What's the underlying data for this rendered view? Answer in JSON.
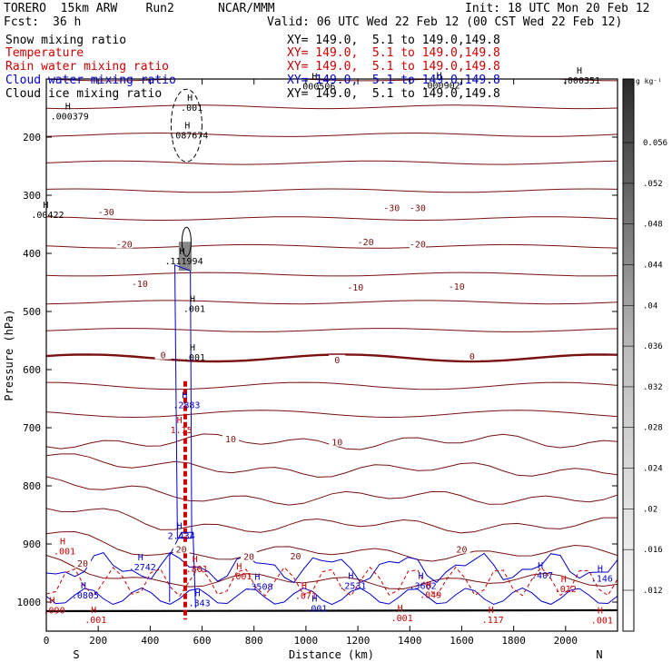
{
  "header": {
    "model": "TORERO  15km ARW    Run2",
    "org": "NCAR/MMM",
    "init": "Init: 18 UTC Mon 20 Feb 12",
    "fcst_label": "Fcst:",
    "fcst_value": "36 h",
    "valid": "Valid: 06 UTC Wed 22 Feb 12 (00 CST Wed 22 Feb 12)"
  },
  "legend": [
    {
      "name": "Snow mixing ratio",
      "coords": "",
      "color": "#000000"
    },
    {
      "name": "Temperature",
      "coords": "XY= 149.0,  5.1 to 149.0,149.8",
      "color": "#cc0000"
    },
    {
      "name": "Rain water mixing ratio",
      "coords": "XY= 149.0,  5.1 to 149.0,149.8",
      "color": "#cc0000"
    },
    {
      "name": "Cloud water mixing ratio",
      "coords": "XY= 149.0,  5.1 to 149.0,149.8",
      "color": "#0000cc"
    },
    {
      "name": "Cloud ice mixing ratio",
      "coords": "XY= 149.0,  5.1 to 149.0,149.8",
      "color": "#000000"
    }
  ],
  "snow_coords": "XY= 149.0,  5.1 to 149.0,149.8",
  "chart_data": {
    "type": "cross-section contour",
    "title": "Vertical cross-section",
    "xlabel": "Distance (km)",
    "ylabel": "Pressure (hPa)",
    "xlim": [
      0,
      2200
    ],
    "ylim": [
      1050,
      100
    ],
    "x_ticks": [
      0,
      200,
      400,
      600,
      800,
      1000,
      1200,
      1400,
      1600,
      1800,
      2000
    ],
    "y_ticks": [
      200,
      300,
      400,
      500,
      600,
      700,
      800,
      900,
      1000
    ],
    "x_end_labels": {
      "left": "S",
      "right": "N"
    },
    "colorbar": {
      "unit": "g kg⁻¹",
      "ticks": [
        "0.056",
        ".052",
        ".048",
        ".044",
        ".04",
        ".036",
        ".032",
        ".028",
        ".024",
        ".02",
        ".016",
        ".012"
      ]
    },
    "temperature_labels": [
      {
        "x": 230,
        "p": 330,
        "text": "-30"
      },
      {
        "x": 1330,
        "p": 323,
        "text": "-30"
      },
      {
        "x": 1430,
        "p": 323,
        "text": "-30"
      },
      {
        "x": 300,
        "p": 385,
        "text": "-20"
      },
      {
        "x": 1230,
        "p": 381,
        "text": "-20"
      },
      {
        "x": 1430,
        "p": 385,
        "text": "-20"
      },
      {
        "x": 360,
        "p": 453,
        "text": "-10"
      },
      {
        "x": 1190,
        "p": 459,
        "text": "-10"
      },
      {
        "x": 1580,
        "p": 458,
        "text": "-10"
      },
      {
        "x": 450,
        "p": 576,
        "text": "0"
      },
      {
        "x": 1120,
        "p": 584,
        "text": "0"
      },
      {
        "x": 1640,
        "p": 578,
        "text": "0"
      },
      {
        "x": 710,
        "p": 720,
        "text": "10"
      },
      {
        "x": 1120,
        "p": 726,
        "text": "10"
      },
      {
        "x": 520,
        "p": 910,
        "text": "20"
      },
      {
        "x": 780,
        "p": 923,
        "text": "20"
      },
      {
        "x": 960,
        "p": 922,
        "text": "20"
      },
      {
        "x": 1600,
        "p": 910,
        "text": "20"
      },
      {
        "x": 140,
        "p": 934,
        "text": "20"
      }
    ],
    "extrema_labels": [
      {
        "x": 90,
        "p": 165,
        "text": ".000379",
        "color": "#000"
      },
      {
        "x": 550,
        "p": 198,
        "text": ".087674",
        "color": "#000"
      },
      {
        "x": 560,
        "p": 150,
        "text": ".001",
        "color": "#000"
      },
      {
        "x": 530,
        "p": 414,
        "text": ".111994",
        "color": "#000"
      },
      {
        "x": 5,
        "p": 334,
        "text": ".00422",
        "color": "#000"
      },
      {
        "x": 1040,
        "p": 113,
        "text": ".000506",
        "color": "#000"
      },
      {
        "x": 1520,
        "p": 112,
        "text": ".000902",
        "color": "#000"
      },
      {
        "x": 2060,
        "p": 103,
        "text": ".000351",
        "color": "#000"
      },
      {
        "x": 570,
        "p": 496,
        "text": ".001",
        "color": "#000"
      },
      {
        "x": 570,
        "p": 580,
        "text": ".001",
        "color": "#000"
      },
      {
        "x": 540,
        "p": 662,
        "text": ".2883",
        "color": "#0000cc"
      },
      {
        "x": 520,
        "p": 705,
        "text": "1.15",
        "color": "#cc0000"
      },
      {
        "x": 520,
        "p": 887,
        "text": "2.434",
        "color": "#0000cc"
      },
      {
        "x": 370,
        "p": 941,
        "text": ".2742",
        "color": "#0000cc"
      },
      {
        "x": 150,
        "p": 989,
        "text": ".0805",
        "color": "#0000cc"
      },
      {
        "x": 750,
        "p": 956,
        "text": ".001",
        "color": "#cc0000"
      },
      {
        "x": 820,
        "p": 974,
        "text": ".3508",
        "color": "#0000cc"
      },
      {
        "x": 1180,
        "p": 973,
        "text": ".2531",
        "color": "#0000cc"
      },
      {
        "x": 1450,
        "p": 973,
        "text": ".3662",
        "color": "#0000cc"
      },
      {
        "x": 1480,
        "p": 988,
        "text": ".049",
        "color": "#cc0000"
      },
      {
        "x": 1000,
        "p": 990,
        "text": ".071",
        "color": "#cc0000"
      },
      {
        "x": 1040,
        "p": 1012,
        "text": ".001",
        "color": "#0000cc"
      },
      {
        "x": 1910,
        "p": 955,
        "text": ".407",
        "color": "#0000cc"
      },
      {
        "x": 2000,
        "p": 978,
        "text": ".012",
        "color": "#cc0000"
      },
      {
        "x": 2140,
        "p": 960,
        "text": ".146",
        "color": "#0000cc"
      },
      {
        "x": 1720,
        "p": 1031,
        "text": ".117",
        "color": "#cc0000"
      },
      {
        "x": 30,
        "p": 1015,
        "text": ".090",
        "color": "#cc0000"
      },
      {
        "x": 190,
        "p": 1031,
        "text": ".001",
        "color": "#cc0000"
      },
      {
        "x": 1370,
        "p": 1028,
        "text": ".001",
        "color": "#cc0000"
      },
      {
        "x": 2140,
        "p": 1032,
        "text": ".001",
        "color": "#cc0000"
      },
      {
        "x": 70,
        "p": 913,
        "text": ".001",
        "color": "#cc0000"
      },
      {
        "x": 580,
        "p": 944,
        "text": ".801",
        "color": "#cc0000"
      },
      {
        "x": 590,
        "p": 1002,
        "text": ".343",
        "color": "#0000cc"
      }
    ]
  }
}
